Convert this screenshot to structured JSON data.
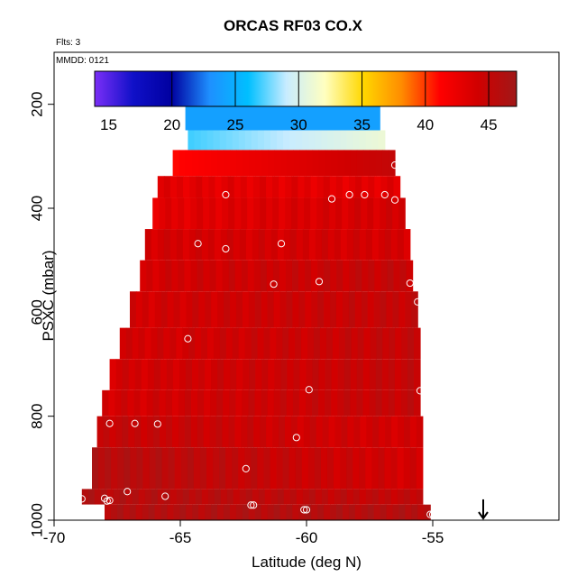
{
  "chart_data": {
    "type": "heatmap",
    "title": "ORCAS RF03 CO.X",
    "flights_label": "Flts: 3",
    "mmdd_label": "MMDD: 0121",
    "xlabel": "Latitude (deg N)",
    "ylabel": "PSXC (mbar)",
    "xlim": [
      -70,
      -50
    ],
    "ylim": [
      1000,
      100
    ],
    "x_ticks": [
      -70,
      -65,
      -60,
      -55
    ],
    "x_tick_labels": [
      "-70",
      "-65",
      "-60",
      "-55"
    ],
    "y_ticks": [
      200,
      400,
      600,
      800,
      1000
    ],
    "y_tick_labels": [
      "200",
      "400",
      "600",
      "800",
      "1000"
    ],
    "colorbar": {
      "range": [
        13.9,
        47.2
      ],
      "ticks": [
        15,
        20,
        25,
        30,
        35,
        40,
        45
      ],
      "tick_labels": [
        "15",
        "20",
        "25",
        "30",
        "35",
        "40",
        "45"
      ],
      "palette": [
        "#7b2ff7",
        "#1010c8",
        "#0000a0",
        "#1e90ff",
        "#00bfff",
        "#c8ecff",
        "#ffffc0",
        "#ffd700",
        "#ff8c00",
        "#ff0000",
        "#d00000",
        "#a01818"
      ]
    },
    "colorbar_dividers": [
      20,
      25,
      30,
      35,
      40,
      45
    ],
    "layers": [
      {
        "p_top": 178,
        "p_bot": 200,
        "lat_min": -64.6,
        "lat_max": -57.0,
        "value_left": 16,
        "value_right": 14,
        "accent": {
          "lat_min": -57.6,
          "value": 24,
          "lat_split": -57.3,
          "value2": 34
        }
      },
      {
        "p_top": 200,
        "p_bot": 250,
        "lat_min": -64.8,
        "lat_max": -57.1,
        "value_left": 24,
        "value_right": 24
      },
      {
        "p_top": 250,
        "p_bot": 288,
        "lat_min": -64.7,
        "lat_max": -56.9,
        "value_left": 27,
        "value_right": 31
      },
      {
        "p_top": 288,
        "p_bot": 338,
        "lat_min": -65.3,
        "lat_max": -56.5,
        "value_left": 41,
        "value_right": 45
      },
      {
        "p_top": 338,
        "p_bot": 380,
        "lat_min": -65.9,
        "lat_max": -56.3,
        "value_left": 43,
        "value_right": 43
      },
      {
        "p_top": 380,
        "p_bot": 440,
        "lat_min": -66.1,
        "lat_max": -56.1,
        "value_left": 43,
        "value_right": 44
      },
      {
        "p_top": 440,
        "p_bot": 500,
        "lat_min": -66.4,
        "lat_max": -55.9,
        "value_left": 44,
        "value_right": 44
      },
      {
        "p_top": 500,
        "p_bot": 560,
        "lat_min": -66.6,
        "lat_max": -55.8,
        "value_left": 44,
        "value_right": 45
      },
      {
        "p_top": 560,
        "p_bot": 630,
        "lat_min": -67.0,
        "lat_max": -55.6,
        "value_left": 44,
        "value_right": 45
      },
      {
        "p_top": 630,
        "p_bot": 690,
        "lat_min": -67.4,
        "lat_max": -55.5,
        "value_left": 44,
        "value_right": 45
      },
      {
        "p_top": 690,
        "p_bot": 750,
        "lat_min": -67.8,
        "lat_max": -55.5,
        "value_left": 44,
        "value_right": 45
      },
      {
        "p_top": 750,
        "p_bot": 800,
        "lat_min": -68.1,
        "lat_max": -55.5,
        "value_left": 44,
        "value_right": 45
      },
      {
        "p_top": 800,
        "p_bot": 860,
        "lat_min": -68.3,
        "lat_max": -55.4,
        "value_left": 45,
        "value_right": 44
      },
      {
        "p_top": 860,
        "p_bot": 940,
        "lat_min": -68.5,
        "lat_max": -55.4,
        "value_left": 46,
        "value_right": 44
      },
      {
        "p_top": 940,
        "p_bot": 970,
        "lat_min": -68.9,
        "lat_max": -55.4,
        "value_left": 46,
        "value_right": 45
      },
      {
        "p_top": 970,
        "p_bot": 1000,
        "lat_min": -68.0,
        "lat_max": -55.1,
        "value_left": 46,
        "value_right": 46
      }
    ],
    "gap_patch": {
      "lat_min": -69.2,
      "lat_max": -68.0,
      "p_top": 970,
      "p_bot": 1000
    },
    "sample_points": [
      {
        "lat": -64.5,
        "p": 178
      },
      {
        "lat": -61.8,
        "p": 178
      },
      {
        "lat": -58.3,
        "p": 178
      },
      {
        "lat": -57.6,
        "p": 178
      },
      {
        "lat": -57.1,
        "p": 178
      },
      {
        "lat": -56.5,
        "p": 317
      },
      {
        "lat": -63.2,
        "p": 374
      },
      {
        "lat": -59.0,
        "p": 382
      },
      {
        "lat": -58.3,
        "p": 374
      },
      {
        "lat": -57.7,
        "p": 374
      },
      {
        "lat": -56.9,
        "p": 374
      },
      {
        "lat": -56.5,
        "p": 384
      },
      {
        "lat": -64.3,
        "p": 468
      },
      {
        "lat": -63.2,
        "p": 478
      },
      {
        "lat": -61.0,
        "p": 468
      },
      {
        "lat": -61.3,
        "p": 546
      },
      {
        "lat": -59.5,
        "p": 541
      },
      {
        "lat": -55.9,
        "p": 544
      },
      {
        "lat": -55.6,
        "p": 580
      },
      {
        "lat": -64.7,
        "p": 651
      },
      {
        "lat": -68.9,
        "p": 737
      },
      {
        "lat": -59.9,
        "p": 749
      },
      {
        "lat": -55.5,
        "p": 751
      },
      {
        "lat": -68.7,
        "p": 812
      },
      {
        "lat": -67.8,
        "p": 814
      },
      {
        "lat": -66.8,
        "p": 814
      },
      {
        "lat": -65.9,
        "p": 815
      },
      {
        "lat": -68.8,
        "p": 831
      },
      {
        "lat": -60.4,
        "p": 841
      },
      {
        "lat": -62.4,
        "p": 901
      },
      {
        "lat": -67.1,
        "p": 945
      },
      {
        "lat": -65.6,
        "p": 954
      },
      {
        "lat": -68.9,
        "p": 959
      },
      {
        "lat": -68.0,
        "p": 958
      },
      {
        "lat": -67.9,
        "p": 963
      },
      {
        "lat": -67.8,
        "p": 962
      },
      {
        "lat": -62.2,
        "p": 971
      },
      {
        "lat": -62.1,
        "p": 971
      },
      {
        "lat": -60.1,
        "p": 980
      },
      {
        "lat": -60.0,
        "p": 980
      },
      {
        "lat": -55.1,
        "p": 989
      },
      {
        "lat": -55.0,
        "p": 989
      }
    ],
    "arrow": {
      "lat": -53.0,
      "p_start": 960,
      "p_end": 1000
    },
    "grid": false,
    "legend": "top"
  }
}
